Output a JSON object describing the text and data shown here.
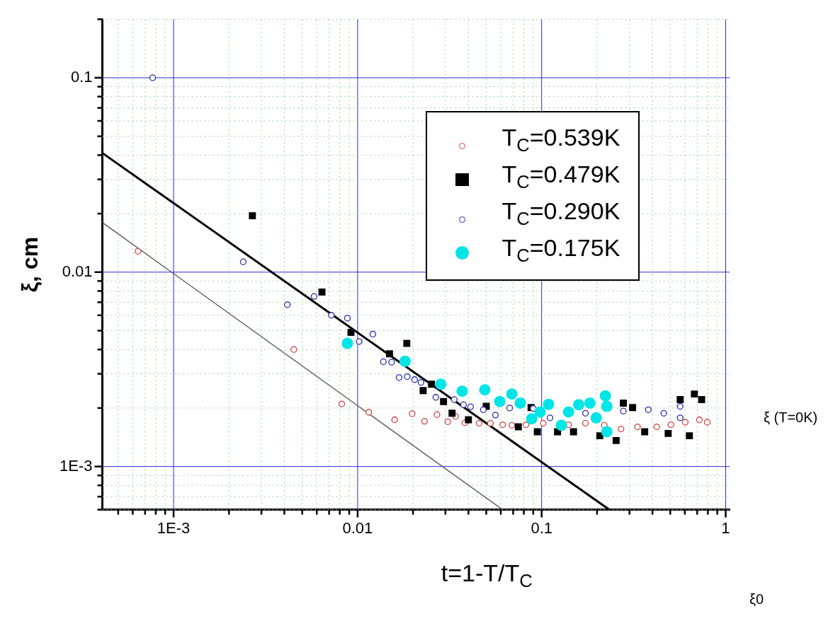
{
  "chart_data": {
    "type": "scatter",
    "xlabel": "t=1-T/T$_{C}$",
    "ylabel": "ξ, cm",
    "log": "xy",
    "grid": true,
    "legend": "top right",
    "xlim": [
      0.00041,
      1.05
    ],
    "ylim": [
      0.0006,
      0.2
    ],
    "xticks": [
      {
        "value": 0.0005,
        "label": null
      },
      {
        "value": 0.0006,
        "label": null
      },
      {
        "value": 0.0007,
        "label": null
      },
      {
        "value": 0.0008,
        "label": null
      },
      {
        "value": 0.0009,
        "label": null
      },
      {
        "value": 0.001,
        "label": "1E-3"
      },
      {
        "value": 0.002,
        "label": null
      },
      {
        "value": 0.003,
        "label": null
      },
      {
        "value": 0.004,
        "label": null
      },
      {
        "value": 0.005,
        "label": null
      },
      {
        "value": 0.006,
        "label": null
      },
      {
        "value": 0.007,
        "label": null
      },
      {
        "value": 0.008,
        "label": null
      },
      {
        "value": 0.009,
        "label": null
      },
      0.01,
      {
        "value": 0.02,
        "label": null
      },
      {
        "value": 0.03,
        "label": null
      },
      {
        "value": 0.04,
        "label": null
      },
      {
        "value": 0.05,
        "label": null
      },
      {
        "value": 0.06,
        "label": null
      },
      {
        "value": 0.07,
        "label": null
      },
      {
        "value": 0.08,
        "label": null
      },
      {
        "value": 0.09,
        "label": null
      },
      0.1,
      {
        "value": 0.2,
        "label": null
      },
      {
        "value": 0.3,
        "label": null
      },
      {
        "value": 0.4,
        "label": null
      },
      {
        "value": 0.5,
        "label": null
      },
      {
        "value": 0.6,
        "label": null
      },
      {
        "value": 0.7,
        "label": null
      },
      {
        "value": 0.8,
        "label": null
      },
      {
        "value": 0.9,
        "label": null
      },
      1
    ],
    "yticks": [
      {
        "value": 0.0006,
        "label": null
      },
      {
        "value": 0.0007,
        "label": null
      },
      {
        "value": 0.0008,
        "label": null
      },
      {
        "value": 0.0009,
        "label": null
      },
      {
        "value": 0.001,
        "label": "1E-3"
      },
      {
        "value": 0.002,
        "label": null
      },
      {
        "value": 0.003,
        "label": null
      },
      {
        "value": 0.004,
        "label": null
      },
      {
        "value": 0.005,
        "label": null
      },
      {
        "value": 0.006,
        "label": null
      },
      {
        "value": 0.007,
        "label": null
      },
      {
        "value": 0.008,
        "label": null
      },
      {
        "value": 0.009,
        "label": null
      },
      0.01,
      {
        "value": 0.02,
        "label": null
      },
      {
        "value": 0.03,
        "label": null
      },
      {
        "value": 0.04,
        "label": null
      },
      {
        "value": 0.05,
        "label": null
      },
      {
        "value": 0.06,
        "label": null
      },
      {
        "value": 0.07,
        "label": null
      },
      {
        "value": 0.08,
        "label": null
      },
      {
        "value": 0.09,
        "label": null
      },
      0.1,
      {
        "value": 0.2,
        "label": null
      }
    ],
    "annotations": [
      "ξ (T=0K)",
      "ξ0"
    ],
    "series": [
      {
        "name": "T$_{C}$=0.539K",
        "color": "#d04040",
        "marker": "circle",
        "x": [
          0.00064,
          0.0045,
          0.0082,
          0.0115,
          0.0159,
          0.0198,
          0.0231,
          0.027,
          0.0309,
          0.0341,
          0.0383,
          0.0457,
          0.0527,
          0.0614,
          0.0689,
          0.0822,
          0.102,
          0.14,
          0.173,
          0.219,
          0.27,
          0.332,
          0.422,
          0.504,
          0.603,
          0.72,
          0.794
        ],
        "values": [
          0.0128,
          0.004,
          0.0021,
          0.0019,
          0.00174,
          0.00187,
          0.00171,
          0.00185,
          0.0017,
          0.00181,
          0.00168,
          0.00167,
          0.00167,
          0.00164,
          0.00163,
          0.00164,
          0.00167,
          0.00164,
          0.00167,
          0.00163,
          0.00156,
          0.0016,
          0.0016,
          0.00164,
          0.00169,
          0.00174,
          0.00169
        ]
      },
      {
        "name": "T$_{C}$=0.479K",
        "color": "#000000",
        "marker": "square",
        "x": [
          0.00268,
          0.0064,
          0.0092,
          0.0149,
          0.0185,
          0.0227,
          0.0252,
          0.0293,
          0.0326,
          0.04,
          0.05,
          0.066,
          0.0747,
          0.0876,
          0.0948,
          0.122,
          0.149,
          0.207,
          0.254,
          0.278,
          0.312,
          0.363,
          0.487,
          0.566,
          0.635,
          0.676,
          0.74
        ],
        "values": [
          0.0195,
          0.0079,
          0.0049,
          0.0038,
          0.0043,
          0.00246,
          0.00265,
          0.00216,
          0.00188,
          0.00174,
          0.00204,
          null,
          0.0016,
          0.00201,
          0.00151,
          0.00151,
          0.00151,
          0.00144,
          0.00136,
          0.00212,
          0.00201,
          0.00151,
          0.00148,
          0.00221,
          0.00144,
          0.00236,
          0.00221
        ]
      },
      {
        "name": "T$_{C}$=0.290K",
        "color": "#2828a8",
        "marker": "circle",
        "x": [
          0.00077,
          0.00239,
          0.00415,
          0.0058,
          0.0072,
          0.0088,
          0.0102,
          0.0121,
          0.0138,
          0.0153,
          0.0168,
          0.0186,
          0.0204,
          0.0221,
          0.0266,
          0.0335,
          0.0376,
          0.0411,
          0.0482,
          0.0561,
          0.067,
          0.078,
          0.09,
          0.111,
          0.173,
          0.278,
          0.38,
          0.461,
          0.566,
          0.566
        ],
        "values": [
          0.1,
          0.0113,
          0.0068,
          0.0075,
          0.006,
          0.0058,
          0.0044,
          0.0048,
          0.00346,
          0.00344,
          0.00287,
          0.0029,
          0.0028,
          0.00271,
          0.00227,
          0.00221,
          0.00208,
          0.00203,
          0.00196,
          0.00184,
          0.002,
          null,
          0.00199,
          0.00178,
          0.00188,
          0.00193,
          0.00196,
          0.00188,
          0.00204,
          0.00178
        ]
      },
      {
        "name": "T$_{C}$=0.175K",
        "color": "#00e5e5",
        "marker": "circle",
        "x": [
          0.0088,
          0.0181,
          0.0283,
          0.037,
          0.0491,
          0.0592,
          0.0689,
          0.0766,
          0.0883,
          0.0982,
          0.109,
          0.128,
          0.14,
          0.159,
          0.183,
          0.198,
          0.222,
          0.226,
          0.226
        ],
        "values": [
          0.0043,
          0.00348,
          0.00265,
          0.00244,
          0.00248,
          0.00216,
          0.00236,
          0.00212,
          0.00176,
          0.00191,
          0.00209,
          0.00163,
          0.00191,
          0.00208,
          0.00212,
          0.00178,
          0.00231,
          0.00151,
          0.00204
        ]
      },
      {
        "type": "line",
        "color": "#000000",
        "marker": "none",
        "x": [
          0.00041,
          0.233
        ],
        "values": [
          0.041,
          0.0006
        ]
      },
      {
        "type": "line",
        "color": "#555555",
        "marker": "none",
        "x": [
          0.00041,
          0.0613
        ],
        "values": [
          0.018,
          0.0006
        ]
      }
    ]
  }
}
